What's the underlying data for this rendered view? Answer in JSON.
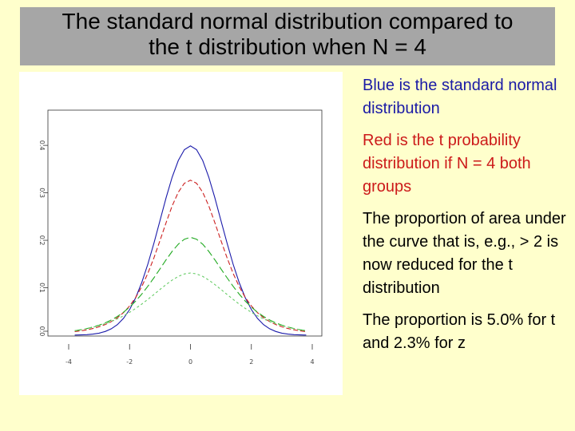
{
  "slide": {
    "title_line1": "The standard normal distribution compared to",
    "title_line2": "the t distribution when N = 4",
    "bullets": {
      "blue": "Blue is the standard normal distribution",
      "red": "Red is the t probability distribution if N = 4 both groups",
      "area": "The proportion of area under the curve that is, e.g., > 2 is now reduced for the t distribution",
      "proportion": "The proportion is 5.0% for t and 2.3% for z"
    }
  },
  "chart_data": {
    "type": "line",
    "xlim": [
      -4,
      4
    ],
    "ylim": [
      0,
      0.4
    ],
    "x_ticks": [
      -4,
      -2,
      0,
      2,
      4
    ],
    "x_tick_labels": [
      "-4",
      "-2",
      "0",
      "2",
      "4"
    ],
    "y_ticks": [
      0.0,
      0.1,
      0.2,
      0.3,
      0.4
    ],
    "y_tick_labels": [
      "0.0",
      "0.1",
      "0.2",
      "0.3",
      "0.4"
    ],
    "grid": false,
    "x": [
      -3.8,
      -3.6,
      -3.4,
      -3.2,
      -3.0,
      -2.8,
      -2.6,
      -2.4,
      -2.2,
      -2.0,
      -1.8,
      -1.6,
      -1.4,
      -1.2,
      -1.0,
      -0.8,
      -0.6,
      -0.4,
      -0.2,
      0.0,
      0.2,
      0.4,
      0.6,
      0.8,
      1.0,
      1.2,
      1.4,
      1.6,
      1.8,
      2.0,
      2.2,
      2.4,
      2.6,
      2.8,
      3.0,
      3.2,
      3.4,
      3.6,
      3.8
    ],
    "series": [
      {
        "color": "#1a1aaa",
        "dash": "",
        "values": [
          0.0003,
          0.0006,
          0.0012,
          0.0024,
          0.0044,
          0.0079,
          0.0136,
          0.0224,
          0.0355,
          0.054,
          0.079,
          0.1109,
          0.1497,
          0.1942,
          0.242,
          0.2897,
          0.3332,
          0.3683,
          0.391,
          0.3989,
          0.391,
          0.3683,
          0.3332,
          0.2897,
          0.242,
          0.1942,
          0.1497,
          0.1109,
          0.079,
          0.054,
          0.0355,
          0.0224,
          0.0136,
          0.0079,
          0.0044,
          0.0024,
          0.0012,
          0.0006,
          0.0003
        ]
      },
      {
        "color": "#cc2222",
        "dash": "6,3",
        "values": [
          0.0075,
          0.0092,
          0.0114,
          0.0142,
          0.0178,
          0.0226,
          0.0288,
          0.0369,
          0.0476,
          0.0615,
          0.0795,
          0.1024,
          0.1304,
          0.1633,
          0.1997,
          0.2373,
          0.2725,
          0.3013,
          0.3201,
          0.3266,
          0.3201,
          0.3013,
          0.2725,
          0.2373,
          0.1997,
          0.1633,
          0.1304,
          0.1024,
          0.0795,
          0.0615,
          0.0476,
          0.0369,
          0.0288,
          0.0226,
          0.0178,
          0.0142,
          0.0114,
          0.0092,
          0.0075
        ]
      },
      {
        "color": "#22aa22",
        "dash": "9,4",
        "values": [
          0.0095,
          0.0115,
          0.0141,
          0.0173,
          0.0212,
          0.0261,
          0.0321,
          0.0395,
          0.0484,
          0.0592,
          0.0719,
          0.0866,
          0.1031,
          0.121,
          0.1399,
          0.1589,
          0.1767,
          0.1919,
          0.2023,
          0.2063,
          0.2023,
          0.1919,
          0.1767,
          0.1589,
          0.1399,
          0.121,
          0.1031,
          0.0866,
          0.0719,
          0.0592,
          0.0484,
          0.0395,
          0.0321,
          0.0261,
          0.0212,
          0.0173,
          0.0141,
          0.0115,
          0.0095
        ]
      },
      {
        "color": "#66cc66",
        "dash": "3,3",
        "values": [
          0.0098,
          0.0117,
          0.0141,
          0.0169,
          0.0203,
          0.0243,
          0.029,
          0.0345,
          0.0409,
          0.0482,
          0.0565,
          0.0656,
          0.0755,
          0.0859,
          0.0965,
          0.1068,
          0.1162,
          0.1239,
          0.1292,
          0.1311,
          0.1292,
          0.1239,
          0.1162,
          0.1068,
          0.0965,
          0.0859,
          0.0755,
          0.0656,
          0.0565,
          0.0482,
          0.0409,
          0.0345,
          0.029,
          0.0243,
          0.0203,
          0.0169,
          0.0141,
          0.0117,
          0.0098
        ]
      }
    ]
  }
}
